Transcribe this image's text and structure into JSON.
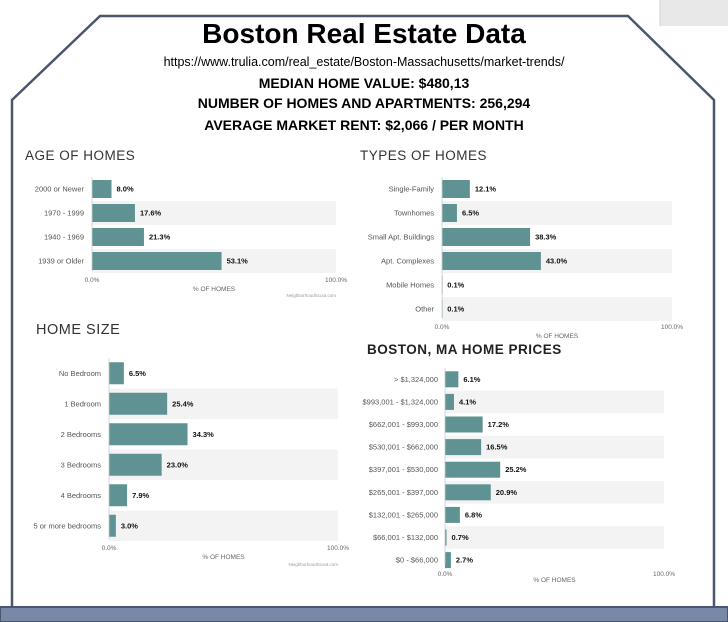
{
  "header": {
    "title": "Boston Real Estate Data",
    "url": "https://www.trulia.com/real_estate/Boston-Massachusetts/market-trends/",
    "stats": [
      "MEDIAN HOME VALUE:  $480,13",
      "NUMBER OF HOMES AND APARTMENTS: 256,294",
      "AVERAGE MARKET RENT: $2,066 / PER MONTH"
    ]
  },
  "colors": {
    "bar": "#5f9393",
    "band": "#f3f3f3",
    "frame": "#4a556e",
    "grid": "#dddddd"
  },
  "chart_data": [
    {
      "type": "bar",
      "orientation": "horizontal",
      "title": "AGE OF HOMES",
      "categories": [
        "2000 or Newer",
        "1970 - 1999",
        "1940 - 1969",
        "1939 or Older"
      ],
      "values": [
        8.0,
        17.6,
        21.3,
        53.1
      ],
      "value_labels": [
        "8.0%",
        "17.6%",
        "21.3%",
        "53.1%"
      ],
      "xlabel": "% OF HOMES",
      "xlim": [
        0,
        100
      ],
      "x_ticks": [
        "0.0%",
        "100.0%"
      ],
      "source": "NeighborhoodScout.com"
    },
    {
      "type": "bar",
      "orientation": "horizontal",
      "title": "TYPES OF HOMES",
      "categories": [
        "Single-Family",
        "Townhomes",
        "Small Apt. Buildings",
        "Apt. Complexes",
        "Mobile Homes",
        "Other"
      ],
      "values": [
        12.1,
        6.5,
        38.3,
        43.0,
        0.1,
        0.1
      ],
      "value_labels": [
        "12.1%",
        "6.5%",
        "38.3%",
        "43.0%",
        "0.1%",
        "0.1%"
      ],
      "xlabel": "% OF HOMES",
      "xlim": [
        0,
        100
      ],
      "x_ticks": [
        "0.0%",
        "100.0%"
      ],
      "source": ""
    },
    {
      "type": "bar",
      "orientation": "horizontal",
      "title": "HOME SIZE",
      "categories": [
        "No Bedroom",
        "1 Bedroom",
        "2 Bedrooms",
        "3 Bedrooms",
        "4 Bedrooms",
        "5 or more bedrooms"
      ],
      "values": [
        6.5,
        25.4,
        34.3,
        23.0,
        7.9,
        3.0
      ],
      "value_labels": [
        "6.5%",
        "25.4%",
        "34.3%",
        "23.0%",
        "7.9%",
        "3.0%"
      ],
      "xlabel": "% OF HOMES",
      "xlim": [
        0,
        100
      ],
      "x_ticks": [
        "0.0%",
        "100.0%"
      ],
      "source": "NeighborhoodScout.com"
    },
    {
      "type": "bar",
      "orientation": "horizontal",
      "title": "BOSTON, MA HOME PRICES",
      "categories": [
        "> $1,324,000",
        "$993,001 - $1,324,000",
        "$662,001 - $993,000",
        "$530,001 - $662,000",
        "$397,001 - $530,000",
        "$265,001 - $397,000",
        "$132,001 - $265,000",
        "$66,001 - $132,000",
        "$0 - $66,000"
      ],
      "values": [
        6.1,
        4.1,
        17.2,
        16.5,
        25.2,
        20.9,
        6.8,
        0.7,
        2.7
      ],
      "value_labels": [
        "6.1%",
        "4.1%",
        "17.2%",
        "16.5%",
        "25.2%",
        "20.9%",
        "6.8%",
        "0.7%",
        "2.7%"
      ],
      "xlabel": "% OF HOMES",
      "xlim": [
        0,
        100
      ],
      "x_ticks": [
        "0.0%",
        "100.0%"
      ],
      "source": ""
    }
  ]
}
